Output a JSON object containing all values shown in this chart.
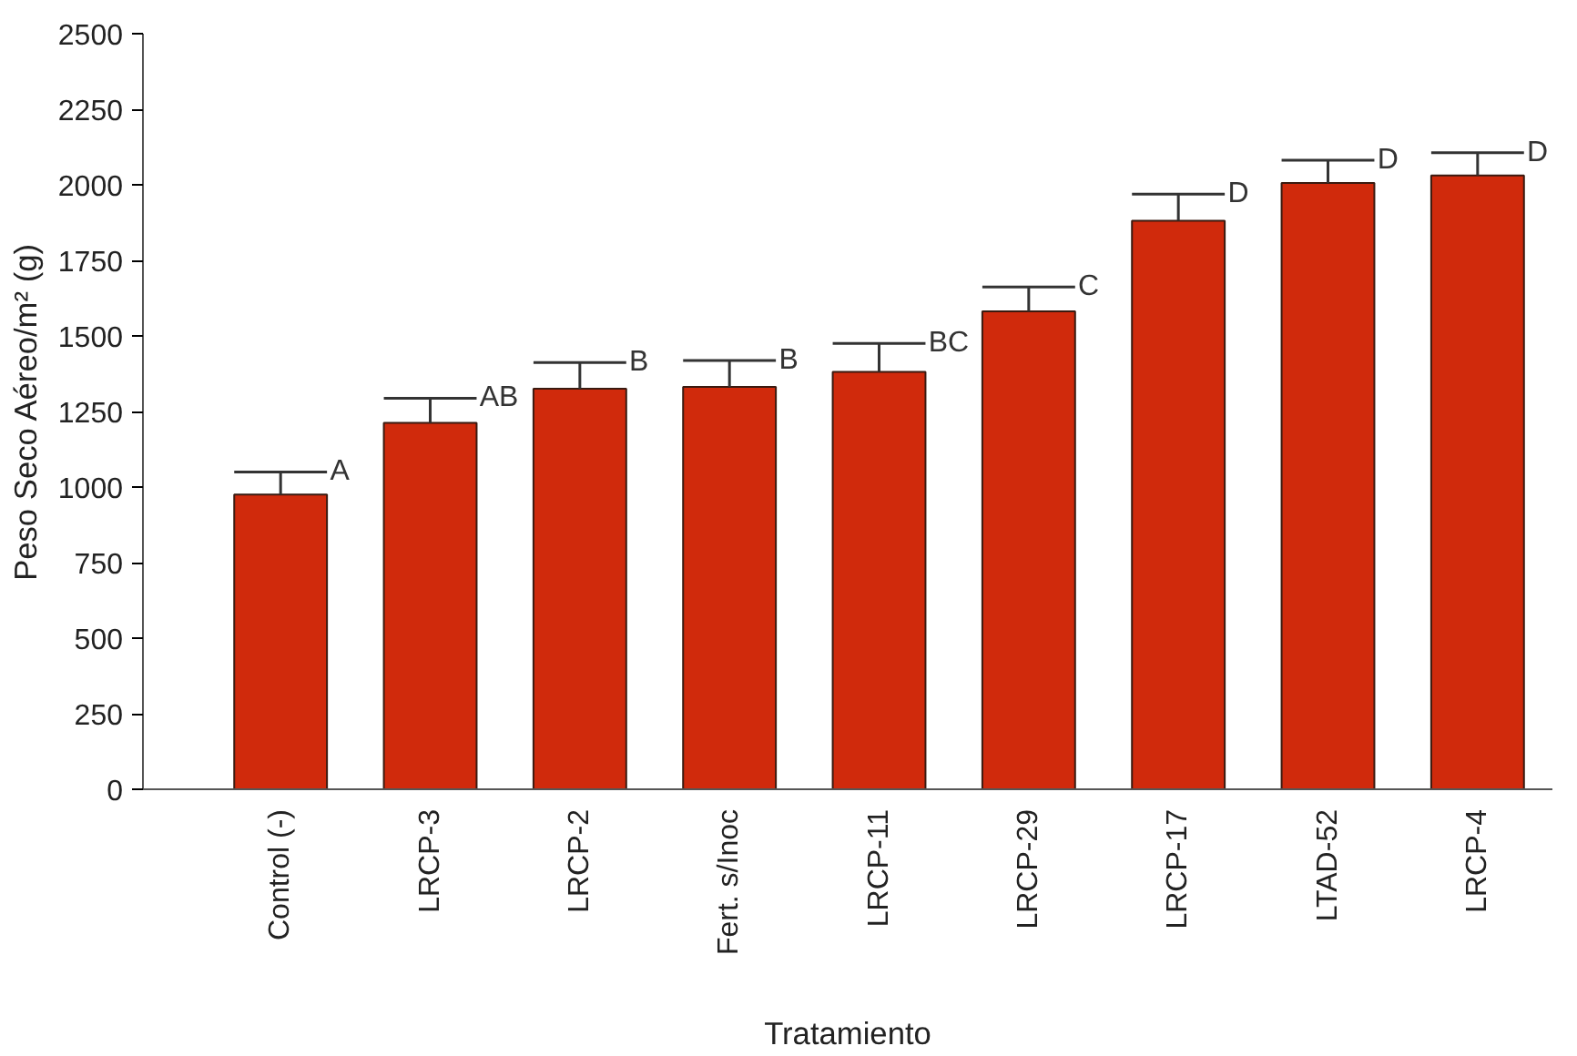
{
  "chart_data": {
    "type": "bar",
    "xlabel": "Tratamiento",
    "ylabel": "Peso Seco Aéreo/m² (g)",
    "categories": [
      "Control (-)",
      "LRCP-3",
      "LRCP-2",
      "Fert. s/Inoc",
      "LRCP-11",
      "LRCP-29",
      "LRCP-17",
      "LTAD-52",
      "LRCP-4"
    ],
    "values": [
      975,
      1212,
      1325,
      1331,
      1381,
      1581,
      1881,
      2006,
      2031
    ],
    "errors": [
      [
        975,
        1050
      ],
      [
        1212,
        1294
      ],
      [
        1325,
        1412
      ],
      [
        1331,
        1419
      ],
      [
        1381,
        1475
      ],
      [
        1581,
        1662
      ],
      [
        1881,
        1969
      ],
      [
        2006,
        2081
      ],
      [
        2031,
        2106
      ]
    ],
    "color": "#d02a0c",
    "ylim": [
      0,
      2500
    ],
    "yticks": [
      0,
      250,
      500,
      750,
      1000,
      1250,
      1500,
      1750,
      2000,
      2250,
      2500
    ],
    "grid": false,
    "annotations": [
      {
        "text": "A",
        "x": "Control (-)",
        "y": 1050
      },
      {
        "text": "AB",
        "x": "LRCP-3",
        "y": 1294
      },
      {
        "text": "B",
        "x": "LRCP-2",
        "y": 1412
      },
      {
        "text": "B",
        "x": "Fert. s/Inoc",
        "y": 1419
      },
      {
        "text": "BC",
        "x": "LRCP-11",
        "y": 1475
      },
      {
        "text": "C",
        "x": "LRCP-29",
        "y": 1662
      },
      {
        "text": "D",
        "x": "LRCP-17",
        "y": 1969
      },
      {
        "text": "D",
        "x": "LTAD-52",
        "y": 2081
      },
      {
        "text": "D",
        "x": "LRCP-4",
        "y": 2106
      }
    ]
  }
}
